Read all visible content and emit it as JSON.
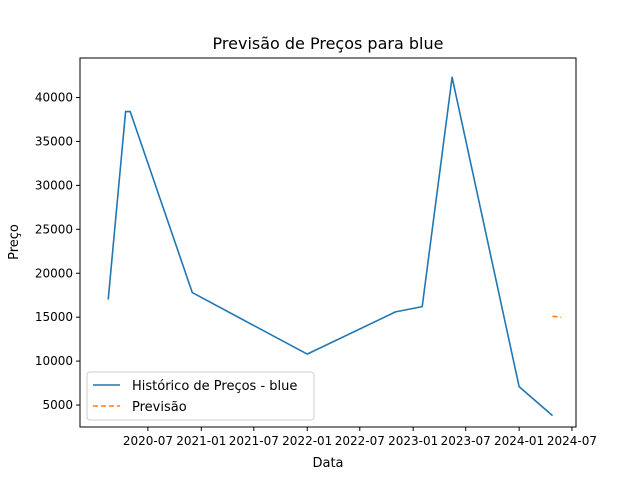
{
  "chart_data": {
    "type": "line",
    "title": "Previsão de Preços para blue",
    "xlabel": "Data",
    "ylabel": "Preço",
    "x_ticks": [
      "2020-07",
      "2021-01",
      "2021-07",
      "2022-01",
      "2022-07",
      "2023-01",
      "2023-07",
      "2024-01",
      "2024-07"
    ],
    "y_ticks": [
      5000,
      10000,
      15000,
      20000,
      25000,
      30000,
      35000,
      40000
    ],
    "xlim": [
      "2019-11-10",
      "2024-07-15"
    ],
    "ylim": [
      2500,
      44500
    ],
    "legend_position": "lower-left",
    "grid": false,
    "series": [
      {
        "name": "Histórico de Preços - blue",
        "color": "#1f77b4",
        "style": "solid",
        "x": [
          "2020-02-15",
          "2020-04-15",
          "2020-05-01",
          "2020-12-01",
          "2022-01-01",
          "2022-11-01",
          "2023-02-01",
          "2023-05-15",
          "2024-01-01",
          "2024-04-25"
        ],
        "y": [
          17000,
          38400,
          38400,
          17800,
          10800,
          15600,
          16200,
          42300,
          7100,
          3800
        ]
      },
      {
        "name": "Previsão",
        "color": "#ff7f0e",
        "style": "dashed",
        "x": [
          "2024-04-25",
          "2024-05-25"
        ],
        "y": [
          15100,
          15000
        ]
      }
    ]
  }
}
